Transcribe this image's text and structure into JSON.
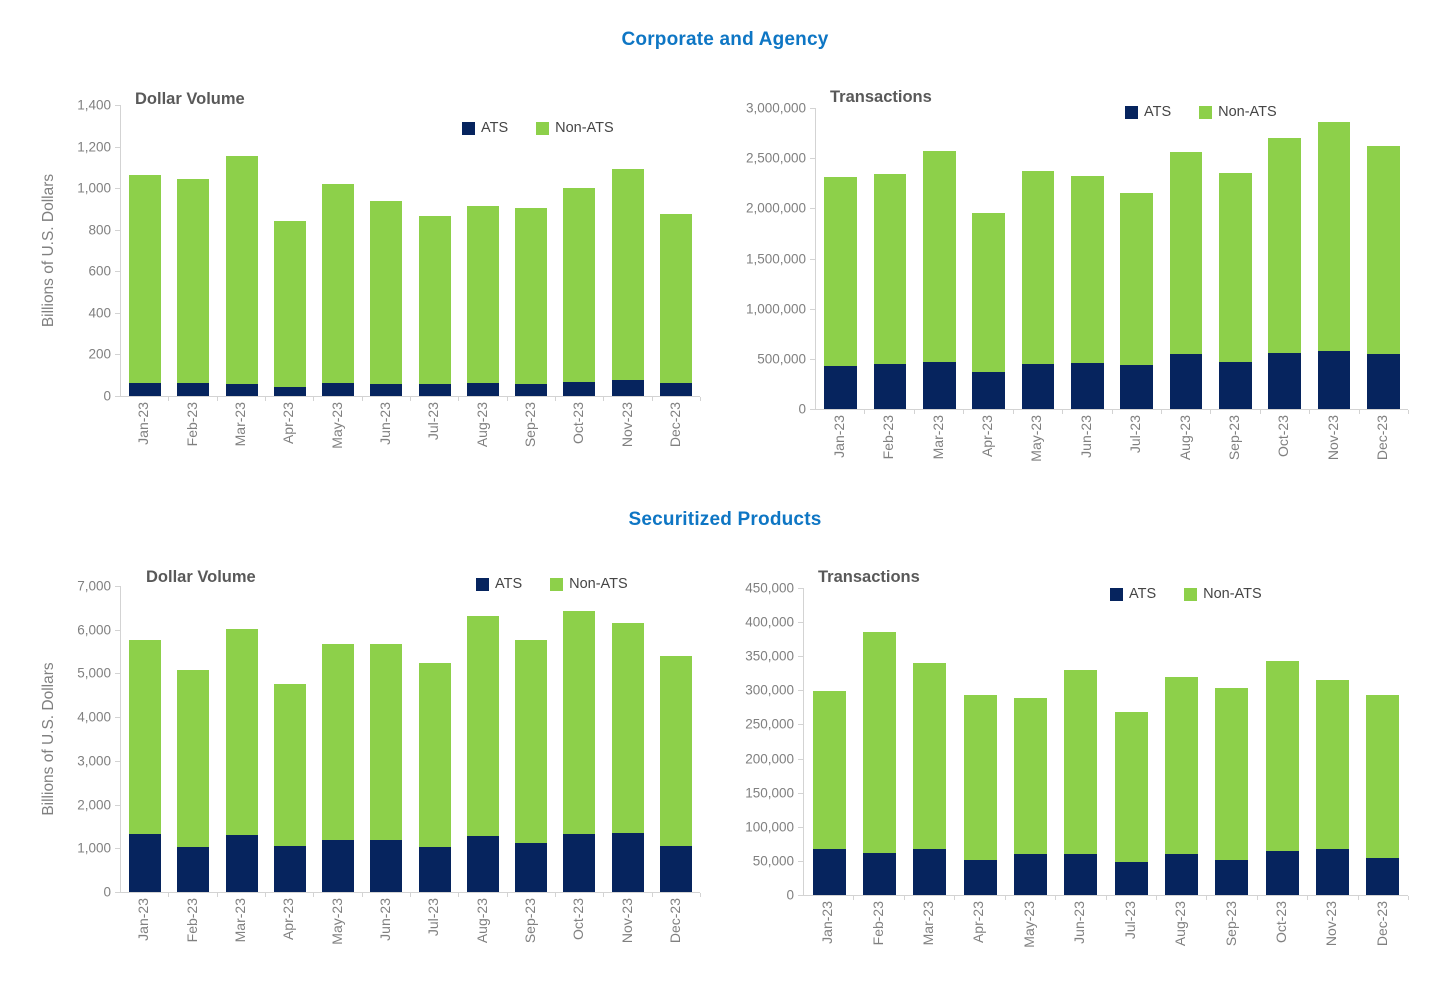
{
  "sections": [
    {
      "title": "Corporate and Agency"
    },
    {
      "title": "Securitized Products"
    }
  ],
  "colors": {
    "ats": "#06245E",
    "non_ats": "#8DD04A",
    "section_title": "#0E76C4",
    "chart_title": "#595959",
    "axis_text": "#808080",
    "axis_line": "#D3D3D3",
    "legend_text": "#454545",
    "background": "#FFFFFF"
  },
  "chart_data": [
    {
      "id": "corporate-dollar-volume",
      "section": "Corporate and Agency",
      "type": "bar",
      "stacked": true,
      "grid": false,
      "title": "Dollar Volume",
      "ylabel": "Billions of U.S. Dollars",
      "ylim": [
        0,
        1400
      ],
      "ytick_step": 200,
      "legend_position": "top-right",
      "categories": [
        "Jan-23",
        "Feb-23",
        "Mar-23",
        "Apr-23",
        "May-23",
        "Jun-23",
        "Jul-23",
        "Aug-23",
        "Sep-23",
        "Oct-23",
        "Nov-23",
        "Dec-23"
      ],
      "series": [
        {
          "name": "ATS",
          "color": "#06245E",
          "values": [
            63,
            63,
            58,
            44,
            62,
            58,
            58,
            62,
            58,
            68,
            79,
            63
          ]
        },
        {
          "name": "Non-ATS",
          "color": "#8DD04A",
          "values": [
            1002,
            982,
            1097,
            796,
            958,
            882,
            810,
            853,
            847,
            932,
            1014,
            813
          ]
        }
      ]
    },
    {
      "id": "corporate-transactions",
      "section": "Corporate and Agency",
      "type": "bar",
      "stacked": true,
      "grid": false,
      "title": "Transactions",
      "ylabel": "",
      "ylim": [
        0,
        3000000
      ],
      "ytick_step": 500000,
      "legend_position": "top-right",
      "categories": [
        "Jan-23",
        "Feb-23",
        "Mar-23",
        "Apr-23",
        "May-23",
        "Jun-23",
        "Jul-23",
        "Aug-23",
        "Sep-23",
        "Oct-23",
        "Nov-23",
        "Dec-23"
      ],
      "series": [
        {
          "name": "ATS",
          "color": "#06245E",
          "values": [
            430000,
            445000,
            470000,
            370000,
            445000,
            455000,
            435000,
            545000,
            465000,
            560000,
            580000,
            545000
          ]
        },
        {
          "name": "Non-ATS",
          "color": "#8DD04A",
          "values": [
            1885000,
            1895000,
            2100000,
            1580000,
            1925000,
            1865000,
            1715000,
            2015000,
            1885000,
            2140000,
            2280000,
            2075000
          ]
        }
      ]
    },
    {
      "id": "securitized-dollar-volume",
      "section": "Securitized Products",
      "type": "bar",
      "stacked": true,
      "grid": false,
      "title": "Dollar Volume",
      "ylabel": "Billions of U.S. Dollars",
      "ylim": [
        0,
        7000
      ],
      "ytick_step": 1000,
      "legend_position": "top-right",
      "categories": [
        "Jan-23",
        "Feb-23",
        "Mar-23",
        "Apr-23",
        "May-23",
        "Jun-23",
        "Jul-23",
        "Aug-23",
        "Sep-23",
        "Oct-23",
        "Nov-23",
        "Dec-23"
      ],
      "series": [
        {
          "name": "ATS",
          "color": "#06245E",
          "values": [
            1320,
            1030,
            1300,
            1060,
            1190,
            1190,
            1040,
            1280,
            1130,
            1330,
            1340,
            1050
          ]
        },
        {
          "name": "Non-ATS",
          "color": "#8DD04A",
          "values": [
            4440,
            4040,
            4710,
            3710,
            4480,
            4480,
            4190,
            5040,
            4630,
            5110,
            4810,
            4340
          ]
        }
      ]
    },
    {
      "id": "securitized-transactions",
      "section": "Securitized Products",
      "type": "bar",
      "stacked": true,
      "grid": false,
      "title": "Transactions",
      "ylabel": "",
      "ylim": [
        0,
        450000
      ],
      "ytick_step": 50000,
      "legend_position": "top-right",
      "categories": [
        "Jan-23",
        "Feb-23",
        "Mar-23",
        "Apr-23",
        "May-23",
        "Jun-23",
        "Jul-23",
        "Aug-23",
        "Sep-23",
        "Oct-23",
        "Nov-23",
        "Dec-23"
      ],
      "series": [
        {
          "name": "ATS",
          "color": "#06245E",
          "values": [
            68000,
            61000,
            68000,
            52000,
            60000,
            60000,
            49000,
            60000,
            52000,
            64000,
            67000,
            54000
          ]
        },
        {
          "name": "Non-ATS",
          "color": "#8DD04A",
          "values": [
            231000,
            324000,
            272000,
            241000,
            229000,
            270000,
            219000,
            260000,
            251000,
            279000,
            248000,
            239000
          ]
        }
      ]
    }
  ]
}
